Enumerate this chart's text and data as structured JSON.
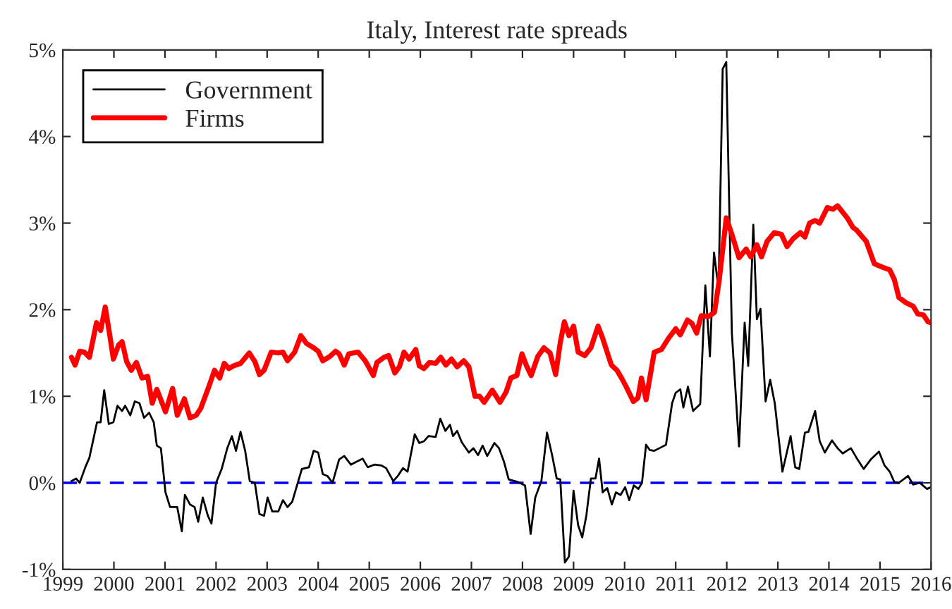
{
  "chart_data": {
    "type": "line",
    "title": "Italy, Interest rate spreads",
    "xlim": [
      1999,
      2016
    ],
    "xticks": [
      1999,
      2000,
      2001,
      2002,
      2003,
      2004,
      2005,
      2006,
      2007,
      2008,
      2009,
      2010,
      2011,
      2012,
      2013,
      2014,
      2015,
      2016
    ],
    "ylim": [
      -1,
      5
    ],
    "yticks": [
      {
        "value": -1,
        "label": "-1%"
      },
      {
        "value": 0,
        "label": "0%"
      },
      {
        "value": 1,
        "label": "1%"
      },
      {
        "value": 2,
        "label": "2%"
      },
      {
        "value": 3,
        "label": "3%"
      },
      {
        "value": 4,
        "label": "4%"
      },
      {
        "value": 5,
        "label": "5%"
      }
    ],
    "legend": "top left",
    "grid": false,
    "line_style": "solid",
    "marker": "none",
    "ref_lines": [
      {
        "axis": "y",
        "value": 0,
        "label": null,
        "color": "#0000ff",
        "line_style": "dashed"
      }
    ],
    "series": [
      {
        "name": "Government",
        "color": "#000000",
        "x": [
          1999.17,
          1999.26,
          1999.33,
          1999.44,
          1999.52,
          1999.67,
          1999.74,
          1999.81,
          1999.9,
          1999.99,
          2000.07,
          2000.16,
          2000.22,
          2000.32,
          2000.41,
          2000.5,
          2000.59,
          2000.69,
          2000.78,
          2000.84,
          2000.92,
          2001.01,
          2001.1,
          2001.24,
          2001.33,
          2001.39,
          2001.49,
          2001.58,
          2001.65,
          2001.74,
          2001.84,
          2001.91,
          2002.0,
          2002.11,
          2002.22,
          2002.31,
          2002.39,
          2002.48,
          2002.57,
          2002.66,
          2002.76,
          2002.85,
          2002.94,
          2003.01,
          2003.1,
          2003.22,
          2003.31,
          2003.4,
          2003.49,
          2003.68,
          2003.82,
          2003.91,
          2004.0,
          2004.09,
          2004.18,
          2004.28,
          2004.41,
          2004.51,
          2004.64,
          2004.87,
          2004.97,
          2005.1,
          2005.24,
          2005.33,
          2005.47,
          2005.56,
          2005.66,
          2005.75,
          2005.89,
          2005.98,
          2006.07,
          2006.16,
          2006.3,
          2006.39,
          2006.49,
          2006.58,
          2006.64,
          2006.72,
          2006.81,
          2006.95,
          2007.04,
          2007.13,
          2007.22,
          2007.31,
          2007.45,
          2007.54,
          2007.64,
          2007.73,
          2007.91,
          2008.05,
          2008.16,
          2008.25,
          2008.37,
          2008.48,
          2008.58,
          2008.67,
          2008.74,
          2008.83,
          2008.91,
          2009.0,
          2009.09,
          2009.17,
          2009.25,
          2009.34,
          2009.43,
          2009.5,
          2009.57,
          2009.66,
          2009.75,
          2009.83,
          2009.92,
          2010.01,
          2010.09,
          2010.18,
          2010.27,
          2010.34,
          2010.42,
          2010.49,
          2010.58,
          2010.68,
          2010.81,
          2010.93,
          2011.0,
          2011.09,
          2011.15,
          2011.24,
          2011.34,
          2011.48,
          2011.58,
          2011.67,
          2011.75,
          2011.84,
          2011.92,
          2011.99,
          2012.1,
          2012.24,
          2012.35,
          2012.42,
          2012.52,
          2012.59,
          2012.66,
          2012.76,
          2012.85,
          2012.94,
          2013.09,
          2013.25,
          2013.34,
          2013.42,
          2013.53,
          2013.6,
          2013.73,
          2013.82,
          2013.92,
          2014.06,
          2014.17,
          2014.27,
          2014.43,
          2014.54,
          2014.68,
          2014.82,
          2014.98,
          2015.09,
          2015.19,
          2015.28,
          2015.37,
          2015.55,
          2015.65,
          2015.78,
          2015.92,
          2016.0
        ],
        "values": [
          0.02,
          0.05,
          0.0,
          0.18,
          0.29,
          0.7,
          0.7,
          1.07,
          0.68,
          0.7,
          0.89,
          0.83,
          0.89,
          0.78,
          0.94,
          0.92,
          0.75,
          0.81,
          0.7,
          0.43,
          0.4,
          -0.11,
          -0.28,
          -0.28,
          -0.56,
          -0.14,
          -0.25,
          -0.28,
          -0.45,
          -0.17,
          -0.38,
          -0.47,
          0.0,
          0.16,
          0.4,
          0.54,
          0.37,
          0.59,
          0.37,
          0.02,
          0.0,
          -0.36,
          -0.38,
          -0.17,
          -0.33,
          -0.33,
          -0.2,
          -0.28,
          -0.22,
          0.16,
          0.18,
          0.37,
          0.35,
          0.1,
          0.08,
          0.0,
          0.27,
          0.31,
          0.21,
          0.28,
          0.18,
          0.21,
          0.2,
          0.17,
          0.02,
          0.08,
          0.17,
          0.13,
          0.56,
          0.46,
          0.48,
          0.54,
          0.53,
          0.74,
          0.6,
          0.67,
          0.54,
          0.6,
          0.47,
          0.35,
          0.4,
          0.32,
          0.43,
          0.31,
          0.46,
          0.4,
          0.24,
          0.04,
          0.01,
          -0.03,
          -0.59,
          -0.17,
          0.02,
          0.58,
          0.32,
          0.05,
          0.04,
          -0.92,
          -0.85,
          -0.09,
          -0.49,
          -0.63,
          -0.38,
          0.05,
          0.05,
          0.28,
          -0.11,
          -0.06,
          -0.25,
          -0.11,
          -0.14,
          -0.05,
          -0.2,
          -0.03,
          -0.07,
          0.0,
          0.44,
          0.38,
          0.37,
          0.4,
          0.44,
          0.92,
          1.04,
          1.08,
          0.87,
          1.11,
          0.83,
          0.91,
          2.28,
          1.46,
          2.66,
          2.24,
          4.78,
          4.86,
          1.73,
          0.42,
          1.85,
          1.35,
          2.98,
          1.89,
          2.01,
          0.94,
          1.19,
          0.92,
          0.13,
          0.54,
          0.18,
          0.16,
          0.58,
          0.59,
          0.83,
          0.48,
          0.35,
          0.49,
          0.4,
          0.34,
          0.4,
          0.29,
          0.16,
          0.27,
          0.36,
          0.2,
          0.13,
          0.01,
          0.0,
          0.08,
          -0.02,
          0.0,
          -0.07,
          -0.05
        ]
      },
      {
        "name": "Firms",
        "color": "#ff0000",
        "x": [
          1999.17,
          1999.24,
          1999.33,
          1999.42,
          1999.52,
          1999.66,
          1999.74,
          1999.83,
          1999.92,
          1999.99,
          2000.09,
          2000.16,
          2000.25,
          2000.34,
          2000.44,
          2000.55,
          2000.66,
          2000.75,
          2000.84,
          2001.01,
          2001.15,
          2001.24,
          2001.38,
          2001.49,
          2001.61,
          2001.7,
          2001.84,
          2001.97,
          2002.07,
          2002.16,
          2002.25,
          2002.34,
          2002.48,
          2002.65,
          2002.76,
          2002.85,
          2002.94,
          2003.08,
          2003.22,
          2003.31,
          2003.4,
          2003.54,
          2003.66,
          2003.77,
          2003.91,
          2004.0,
          2004.09,
          2004.23,
          2004.34,
          2004.41,
          2004.51,
          2004.6,
          2004.78,
          2004.92,
          2005.08,
          2005.15,
          2005.29,
          2005.38,
          2005.5,
          2005.59,
          2005.68,
          2005.78,
          2005.91,
          2005.98,
          2006.07,
          2006.18,
          2006.3,
          2006.4,
          2006.5,
          2006.61,
          2006.72,
          2006.85,
          2006.95,
          2007.07,
          2007.16,
          2007.25,
          2007.41,
          2007.56,
          2007.68,
          2007.77,
          2007.89,
          2007.99,
          2008.08,
          2008.17,
          2008.3,
          2008.42,
          2008.54,
          2008.65,
          2008.74,
          2008.82,
          2008.91,
          2009.0,
          2009.09,
          2009.22,
          2009.34,
          2009.48,
          2009.57,
          2009.74,
          2009.85,
          2009.94,
          2010.03,
          2010.17,
          2010.26,
          2010.33,
          2010.42,
          2010.58,
          2010.72,
          2010.86,
          2011.0,
          2011.09,
          2011.23,
          2011.32,
          2011.41,
          2011.5,
          2011.64,
          2011.76,
          2011.85,
          2011.99,
          2012.1,
          2012.24,
          2012.38,
          2012.47,
          2012.59,
          2012.68,
          2012.79,
          2012.93,
          2013.07,
          2013.18,
          2013.3,
          2013.44,
          2013.53,
          2013.62,
          2013.73,
          2013.82,
          2013.97,
          2014.08,
          2014.17,
          2014.36,
          2014.47,
          2014.54,
          2014.73,
          2014.89,
          2015.05,
          2015.19,
          2015.28,
          2015.37,
          2015.51,
          2015.65,
          2015.74,
          2015.85,
          2015.94,
          2016.0
        ],
        "values": [
          1.45,
          1.36,
          1.52,
          1.51,
          1.45,
          1.85,
          1.76,
          2.03,
          1.7,
          1.43,
          1.59,
          1.63,
          1.4,
          1.3,
          1.39,
          1.21,
          1.23,
          0.92,
          1.08,
          0.82,
          1.09,
          0.78,
          0.97,
          0.75,
          0.78,
          0.86,
          1.08,
          1.3,
          1.21,
          1.38,
          1.32,
          1.35,
          1.38,
          1.5,
          1.4,
          1.25,
          1.3,
          1.51,
          1.5,
          1.51,
          1.41,
          1.51,
          1.7,
          1.61,
          1.56,
          1.52,
          1.41,
          1.46,
          1.52,
          1.49,
          1.36,
          1.49,
          1.51,
          1.41,
          1.24,
          1.39,
          1.45,
          1.47,
          1.27,
          1.34,
          1.51,
          1.43,
          1.54,
          1.35,
          1.32,
          1.39,
          1.38,
          1.45,
          1.36,
          1.43,
          1.34,
          1.41,
          1.34,
          1.0,
          1.0,
          0.93,
          1.07,
          0.93,
          1.05,
          1.21,
          1.24,
          1.49,
          1.35,
          1.24,
          1.46,
          1.56,
          1.5,
          1.25,
          1.62,
          1.86,
          1.7,
          1.81,
          1.51,
          1.47,
          1.56,
          1.81,
          1.67,
          1.36,
          1.3,
          1.21,
          1.11,
          0.94,
          0.98,
          1.21,
          0.96,
          1.51,
          1.54,
          1.67,
          1.78,
          1.71,
          1.88,
          1.84,
          1.73,
          1.93,
          1.92,
          1.97,
          2.33,
          3.06,
          2.87,
          2.6,
          2.7,
          2.61,
          2.75,
          2.61,
          2.79,
          2.89,
          2.87,
          2.73,
          2.82,
          2.89,
          2.84,
          3.0,
          3.03,
          3.0,
          3.18,
          3.16,
          3.2,
          3.06,
          2.95,
          2.92,
          2.79,
          2.53,
          2.49,
          2.46,
          2.35,
          2.14,
          2.08,
          2.04,
          1.95,
          1.94,
          1.86,
          1.85
        ]
      }
    ]
  }
}
